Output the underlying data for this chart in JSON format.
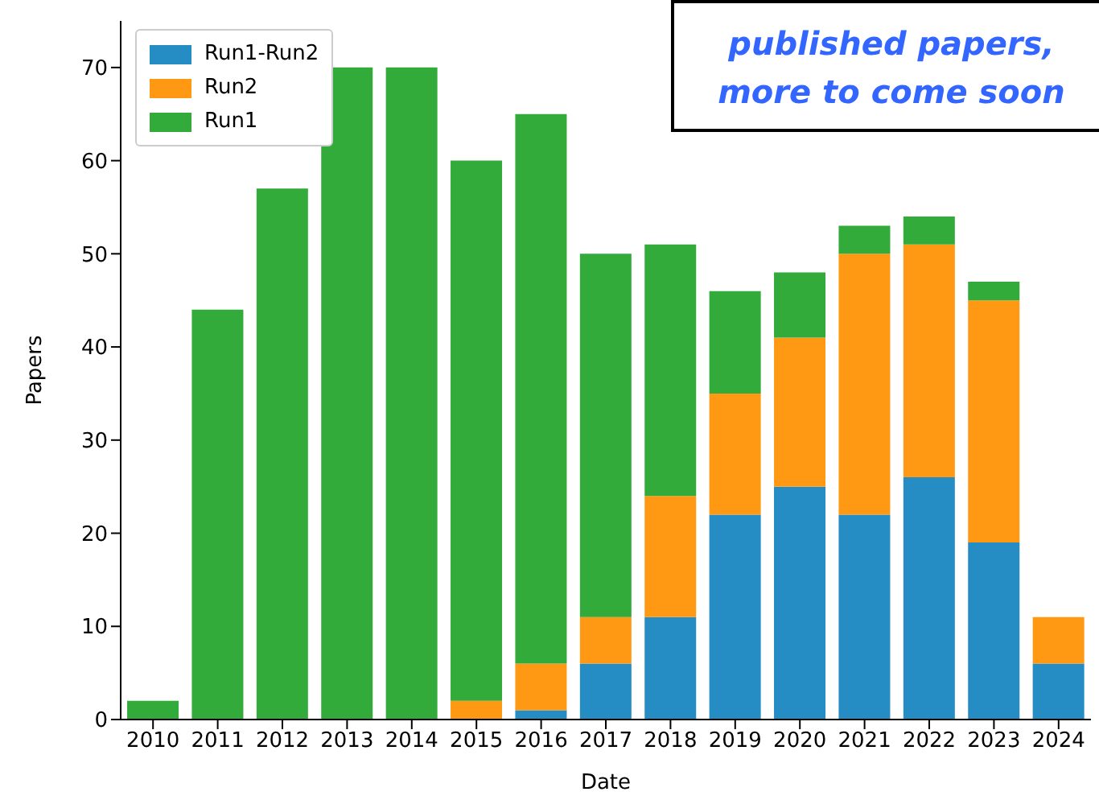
{
  "chart_data": {
    "type": "bar",
    "stacked": true,
    "xlabel": "Date",
    "ylabel": "Papers",
    "categories": [
      "2010",
      "2011",
      "2012",
      "2013",
      "2014",
      "2015",
      "2016",
      "2017",
      "2018",
      "2019",
      "2020",
      "2021",
      "2022",
      "2023",
      "2024"
    ],
    "series": [
      {
        "name": "Run1-Run2",
        "color": "#258cc4",
        "values": [
          0,
          0,
          0,
          0,
          0,
          0,
          1,
          6,
          11,
          22,
          25,
          22,
          26,
          19,
          6
        ]
      },
      {
        "name": "Run2",
        "color": "#ff9913",
        "values": [
          0,
          0,
          0,
          0,
          0,
          2,
          5,
          5,
          13,
          13,
          16,
          28,
          25,
          26,
          5
        ]
      },
      {
        "name": "Run1",
        "color": "#33ab3a",
        "values": [
          2,
          44,
          57,
          70,
          70,
          58,
          59,
          39,
          27,
          11,
          7,
          3,
          3,
          2,
          0
        ]
      }
    ],
    "ylim": [
      0,
      75
    ],
    "yticks": [
      0,
      10,
      20,
      30,
      40,
      50,
      60,
      70
    ],
    "grid": false,
    "legend": "top left",
    "annotations": [
      "published papers, more to come soon"
    ]
  }
}
